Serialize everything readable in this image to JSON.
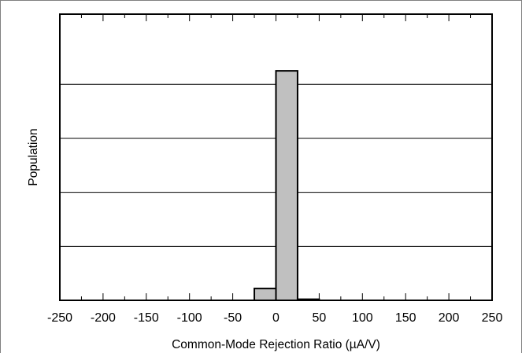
{
  "chart_data": {
    "type": "bar",
    "title": "",
    "xlabel": "Common-Mode Rejection Ratio (µA/V)",
    "ylabel": "Population",
    "xlim": [
      -250,
      250
    ],
    "ylim": [
      0,
      5.3
    ],
    "x_ticks": [
      -250,
      -200,
      -150,
      -100,
      -50,
      0,
      50,
      100,
      150,
      200,
      250
    ],
    "x_tick_labels": [
      "-250",
      "-200",
      "-150",
      "-100",
      "-50",
      "0",
      "50",
      "100",
      "150",
      "200",
      "250"
    ],
    "y_gridlines": [
      1,
      2,
      3,
      4
    ],
    "bin_width": 25,
    "bins": [
      {
        "x0": -25,
        "x1": 0,
        "value": 0.22
      },
      {
        "x0": 0,
        "x1": 25,
        "value": 4.25
      },
      {
        "x0": 25,
        "x1": 50,
        "value": 0.02
      }
    ],
    "bar_color": "#c0c0c0",
    "grid": true,
    "legend": "none"
  }
}
